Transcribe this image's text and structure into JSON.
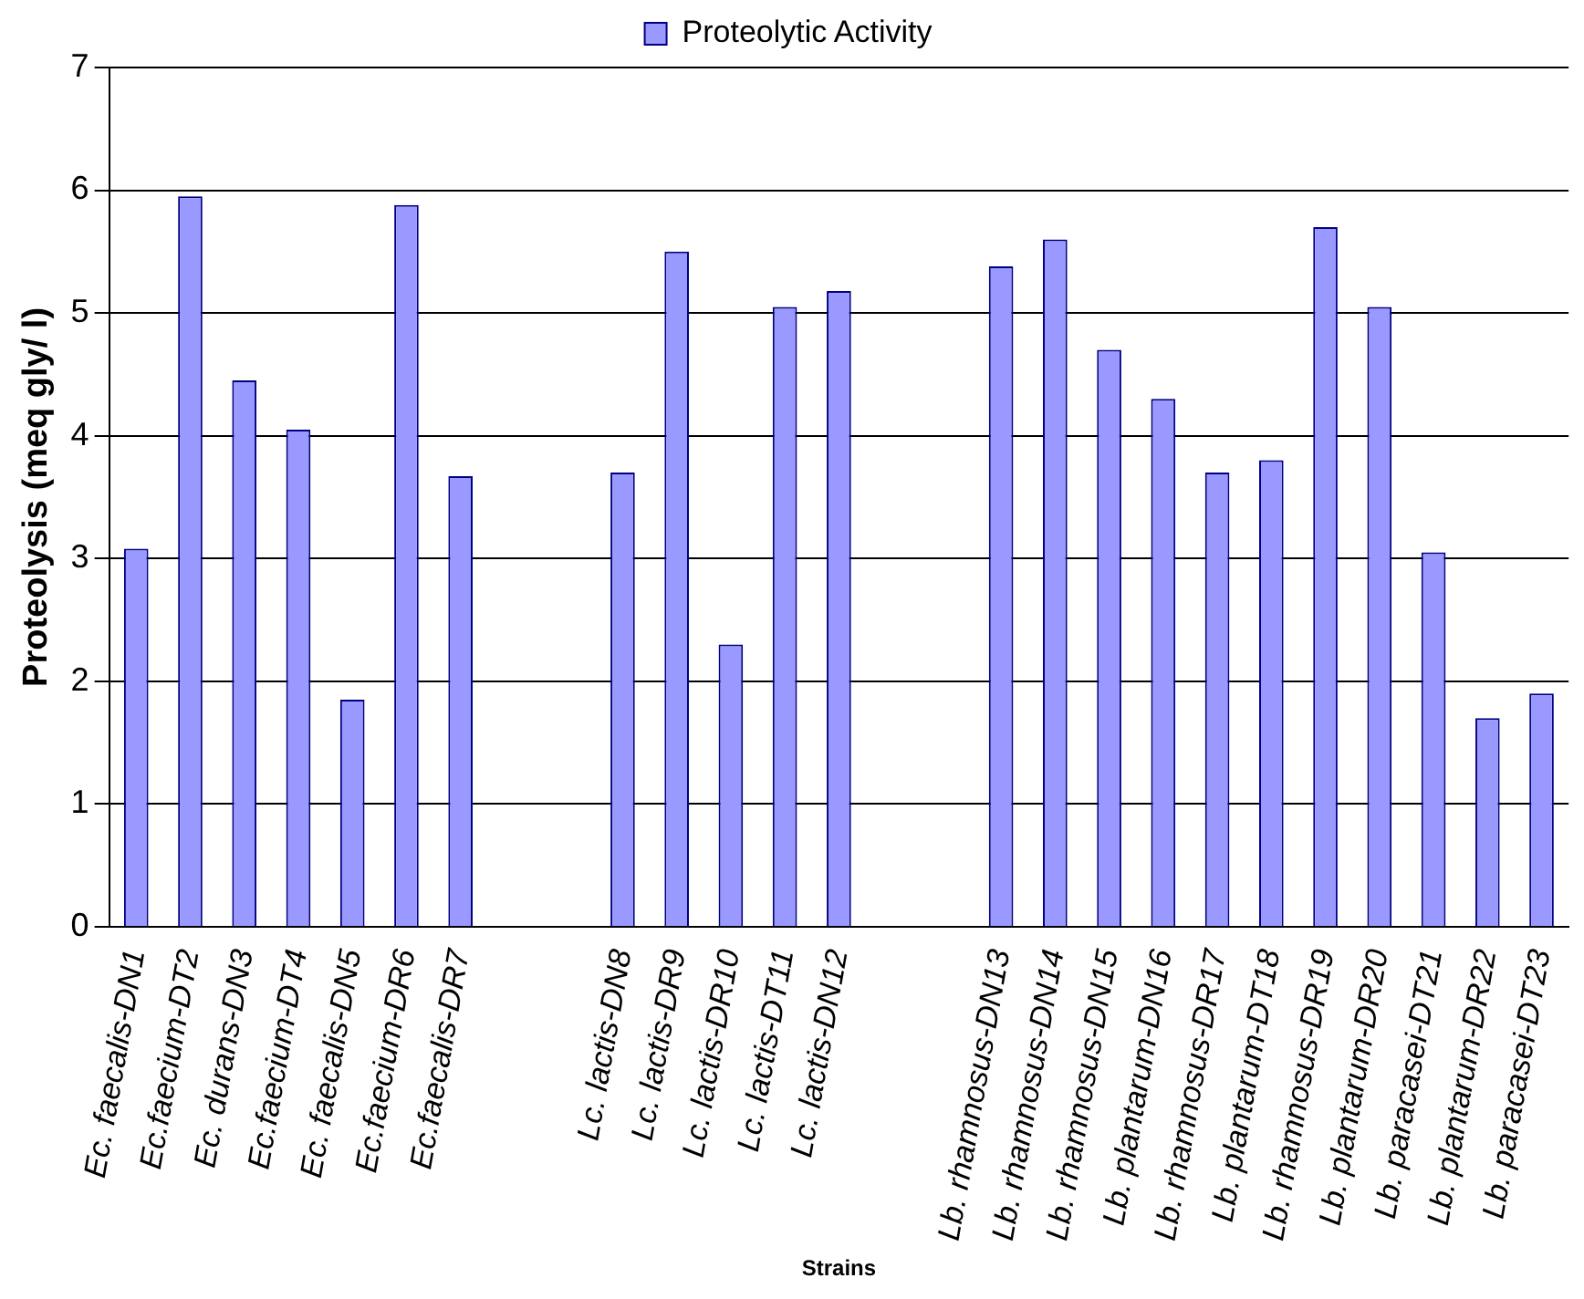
{
  "chart_data": {
    "type": "bar",
    "xlabel": "Strains",
    "ylabel": "Proteolysis (meq gly/ l)",
    "categories": [
      "Ec. faecalis-DN1",
      "Ec.faecium-DT2",
      "Ec. durans-DN3",
      "Ec.faecium-DT4",
      "Ec. faecalis-DN5",
      "Ec.faecium-DR6",
      "Ec.faecalis-DR7",
      null,
      null,
      "Lc. lactis-DN8",
      "Lc. lactis-DR9",
      "Lc. lactis-DR10",
      "Lc. lactis-DT11",
      "Lc. lactis-DN12",
      null,
      null,
      "Lb. rhamnosus-DN13",
      "Lb. rhamnosus-DN14",
      "Lb. rhamnosus-DN15",
      "Lb. plantarum-DN16",
      "Lb. rhamnosus-DR17",
      "Lb. plantarum-DT18",
      "Lb. rhamnosus-DR19",
      "Lb. plantarum-DR20",
      "Lb. paracasei-DT21",
      "Lb. plantarum-DR22",
      "Lb. paracasei-DT23"
    ],
    "series": [
      {
        "name": "Proteolytic Activity",
        "color": "#9999ff",
        "values": [
          3.08,
          5.95,
          4.45,
          4.05,
          1.85,
          5.88,
          3.67,
          null,
          null,
          3.7,
          5.5,
          2.3,
          5.05,
          5.18,
          null,
          null,
          5.38,
          5.6,
          4.7,
          4.3,
          3.7,
          3.8,
          5.7,
          5.05,
          3.05,
          1.7,
          1.9
        ]
      }
    ],
    "ylim": [
      0,
      7
    ],
    "yticks": [
      0,
      1,
      2,
      3,
      4,
      5,
      6,
      7
    ],
    "grid": "y",
    "legend": "top"
  }
}
